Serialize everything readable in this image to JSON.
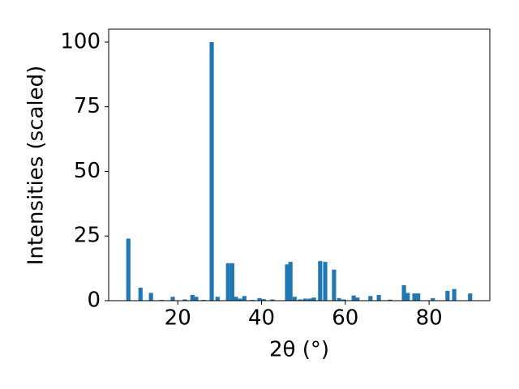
{
  "chart_data": {
    "type": "bar",
    "x_label": "2θ (°)",
    "y_label": "Intensities (scaled)",
    "x": [
      8.2,
      11.1,
      13.6,
      16.1,
      18.8,
      21.7,
      23.5,
      24.4,
      26.2,
      28.1,
      29.5,
      32.0,
      33.0,
      33.9,
      34.9,
      35.9,
      37.8,
      39.5,
      40.5,
      42.6,
      46.1,
      46.9,
      47.9,
      49.2,
      50.4,
      51.5,
      52.5,
      54.0,
      55.2,
      57.3,
      58.5,
      59.6,
      62.0,
      62.9,
      66.0,
      68.0,
      70.7,
      74.0,
      74.9,
      76.5,
      77.4,
      80.9,
      84.4,
      86.0,
      89.8
    ],
    "values": [
      24,
      5,
      3,
      0.3,
      1.5,
      0.5,
      2.2,
      1.5,
      0.3,
      100,
      1.5,
      14.5,
      14.5,
      1.5,
      0.8,
      1.8,
      0.3,
      1.0,
      0.6,
      0.5,
      14,
      15,
      1.5,
      0.5,
      0.8,
      0.8,
      1.2,
      15.3,
      15,
      12,
      1,
      0.5,
      2,
      1.2,
      1.8,
      2.2,
      0.4,
      6,
      3,
      2.8,
      2.8,
      1,
      3.8,
      4.5,
      2.8
    ],
    "color": "#1f77b4",
    "xlim": [
      3.5,
      94.5
    ],
    "xticks": [
      20,
      40,
      60,
      80
    ],
    "ylim": [
      0,
      105
    ],
    "yticks": [
      0,
      25,
      50,
      75,
      100
    ],
    "grid": false
  }
}
